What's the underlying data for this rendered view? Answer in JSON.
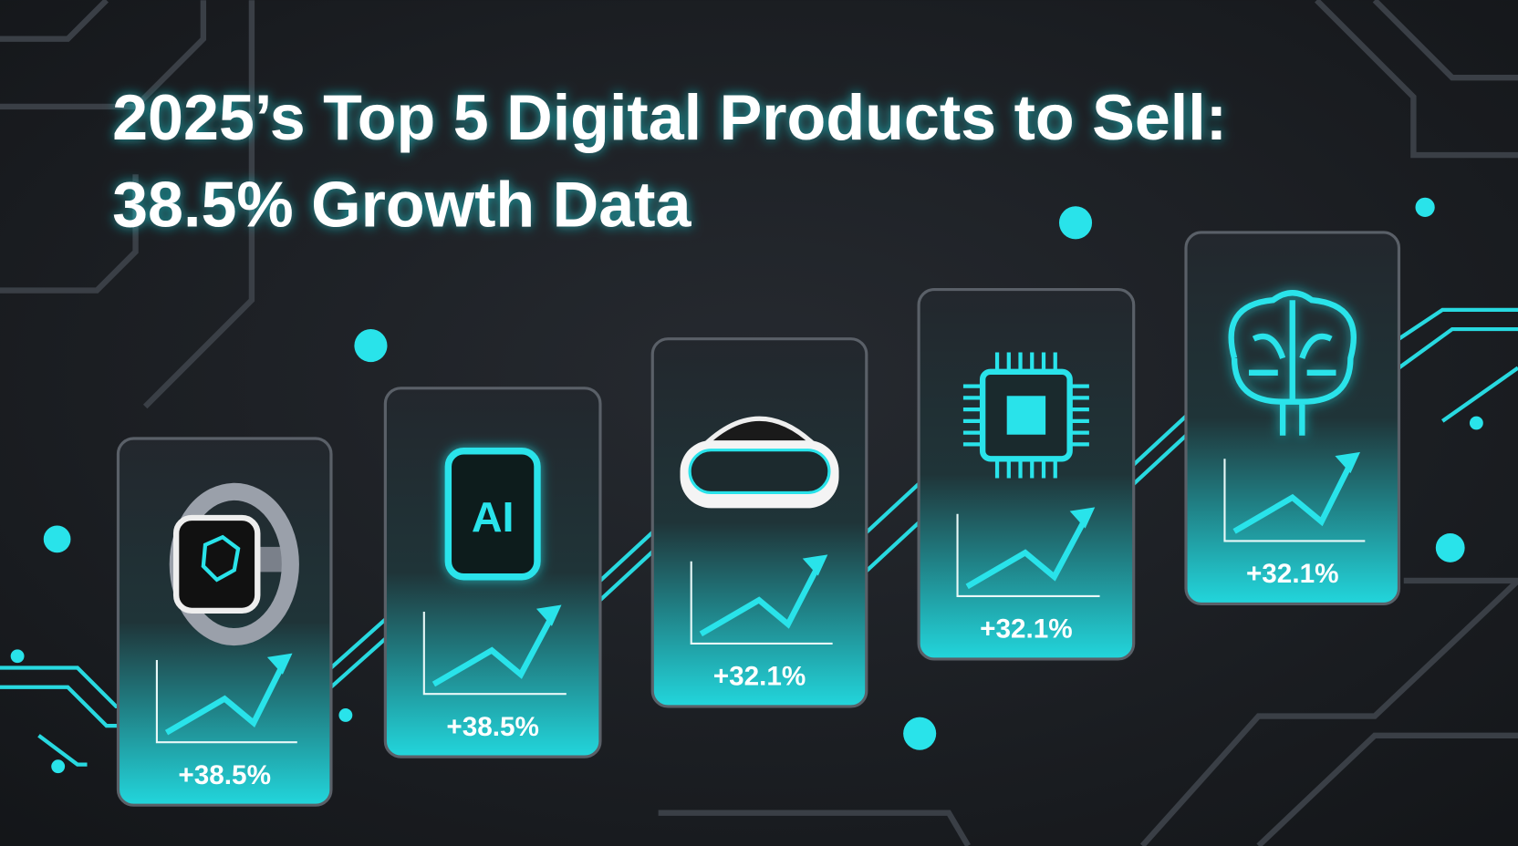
{
  "title": {
    "line1": "2025’s Top 5 Digital Products to Sell:",
    "line2": "38.5% Growth Data"
  },
  "cards": [
    {
      "growth": "+38.5%"
    },
    {
      "icon_label": "AI",
      "growth": "+38.5%"
    },
    {
      "growth": "+32.1%"
    },
    {
      "growth": "+32.1%"
    },
    {
      "growth": "+32.1%"
    }
  ]
}
